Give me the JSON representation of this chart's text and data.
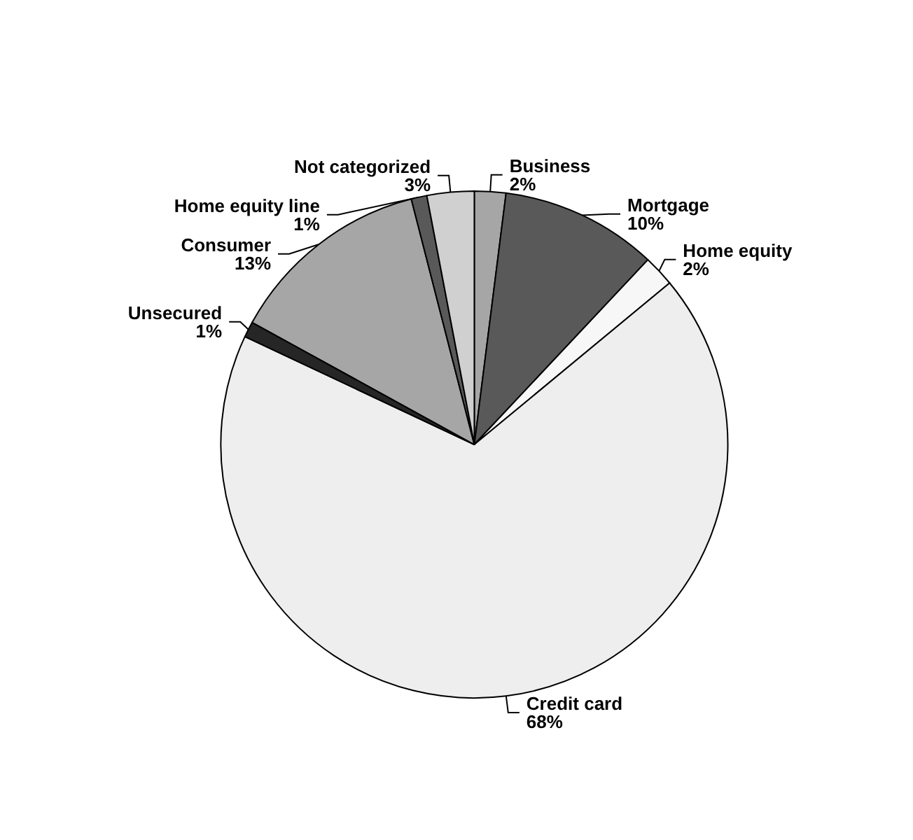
{
  "chart_data": {
    "type": "pie",
    "categories": [
      "Business",
      "Mortgage",
      "Home equity",
      "Credit card",
      "Unsecured",
      "Consumer",
      "Home equity line",
      "Not categorized"
    ],
    "values": [
      2,
      10,
      2,
      68,
      1,
      13,
      1,
      3
    ],
    "colors": [
      "#a6a6a6",
      "#595959",
      "#f7f7f7",
      "#eeeeee",
      "#262626",
      "#a6a6a6",
      "#595959",
      "#d0d0d0"
    ],
    "value_labels": [
      "2%",
      "10%",
      "2%",
      "68%",
      "1%",
      "13%",
      "1%",
      "3%"
    ],
    "legend": false
  }
}
